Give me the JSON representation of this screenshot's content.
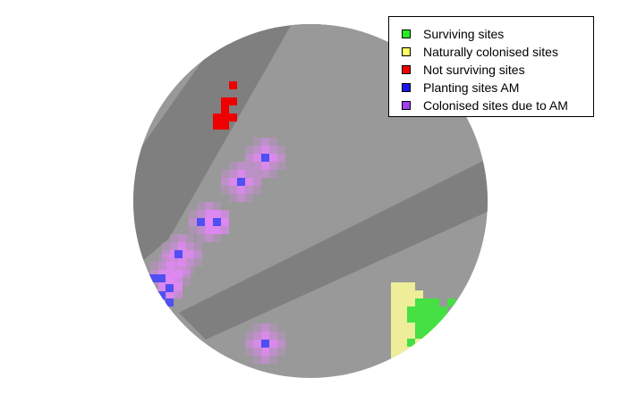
{
  "chart_data": {
    "type": "heatmap",
    "colors": {
      "dark_band": "#7f7f7f",
      "light_band": "#999999",
      "surviving": "#44e044",
      "naturally_colonised": "#f6f69a",
      "not_surviving": "#ee0000",
      "planting_am": "#4f4ff4",
      "colonised_am": "#e486f7"
    },
    "legend": {
      "placement": "top-right",
      "entries": [
        {
          "label": "Surviving sites",
          "color": "#22ee22"
        },
        {
          "label": "Naturally colonised sites",
          "color": "#ffff66"
        },
        {
          "label": "Not surviving sites",
          "color": "#ee0000"
        },
        {
          "label": "Planting sites AM",
          "color": "#1818ee"
        },
        {
          "label": "Colonised sites due to AM",
          "color": "#a040f0"
        }
      ]
    }
  }
}
